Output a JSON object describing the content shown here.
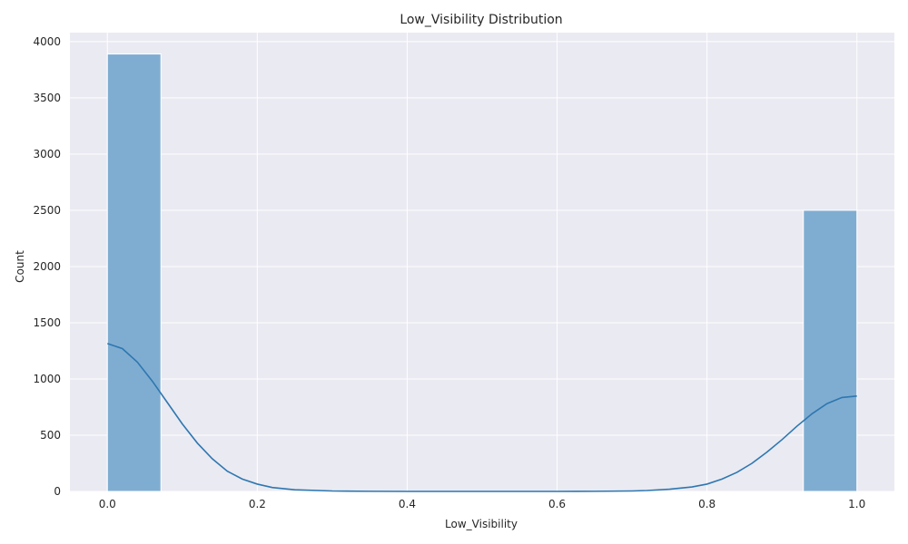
{
  "chart_data": {
    "type": "bar",
    "title": "Low_Visibility Distribution",
    "xlabel": "Low_Visibility",
    "ylabel": "Count",
    "xlim": [
      -0.05,
      1.05
    ],
    "ylim": [
      0,
      4080
    ],
    "x_ticks": [
      "0.0",
      "0.2",
      "0.4",
      "0.6",
      "0.8",
      "1.0"
    ],
    "y_ticks": [
      "0",
      "500",
      "1000",
      "1500",
      "2000",
      "2500",
      "3000",
      "3500",
      "4000"
    ],
    "grid": true,
    "bin_width": 0.0714,
    "bins": [
      {
        "x_start": 0.0,
        "x_end": 0.0714,
        "value": 3890
      },
      {
        "x_start": 0.9286,
        "x_end": 1.0,
        "value": 2500
      }
    ],
    "kde": {
      "x": [
        0.0,
        0.02,
        0.04,
        0.06,
        0.08,
        0.1,
        0.12,
        0.14,
        0.16,
        0.18,
        0.2,
        0.22,
        0.25,
        0.3,
        0.35,
        0.4,
        0.5,
        0.6,
        0.65,
        0.7,
        0.72,
        0.75,
        0.78,
        0.8,
        0.82,
        0.84,
        0.86,
        0.88,
        0.9,
        0.92,
        0.94,
        0.96,
        0.98,
        1.0
      ],
      "y": [
        1315,
        1270,
        1150,
        980,
        790,
        600,
        430,
        290,
        180,
        110,
        65,
        35,
        15,
        4,
        1,
        0,
        0,
        0,
        1,
        4,
        8,
        20,
        40,
        65,
        110,
        170,
        250,
        350,
        460,
        580,
        690,
        780,
        835,
        848
      ]
    },
    "colors": {
      "bar": "#7fadd1",
      "line": "#2e77b0",
      "background": "#eaeaf2",
      "grid": "#ffffff"
    }
  }
}
